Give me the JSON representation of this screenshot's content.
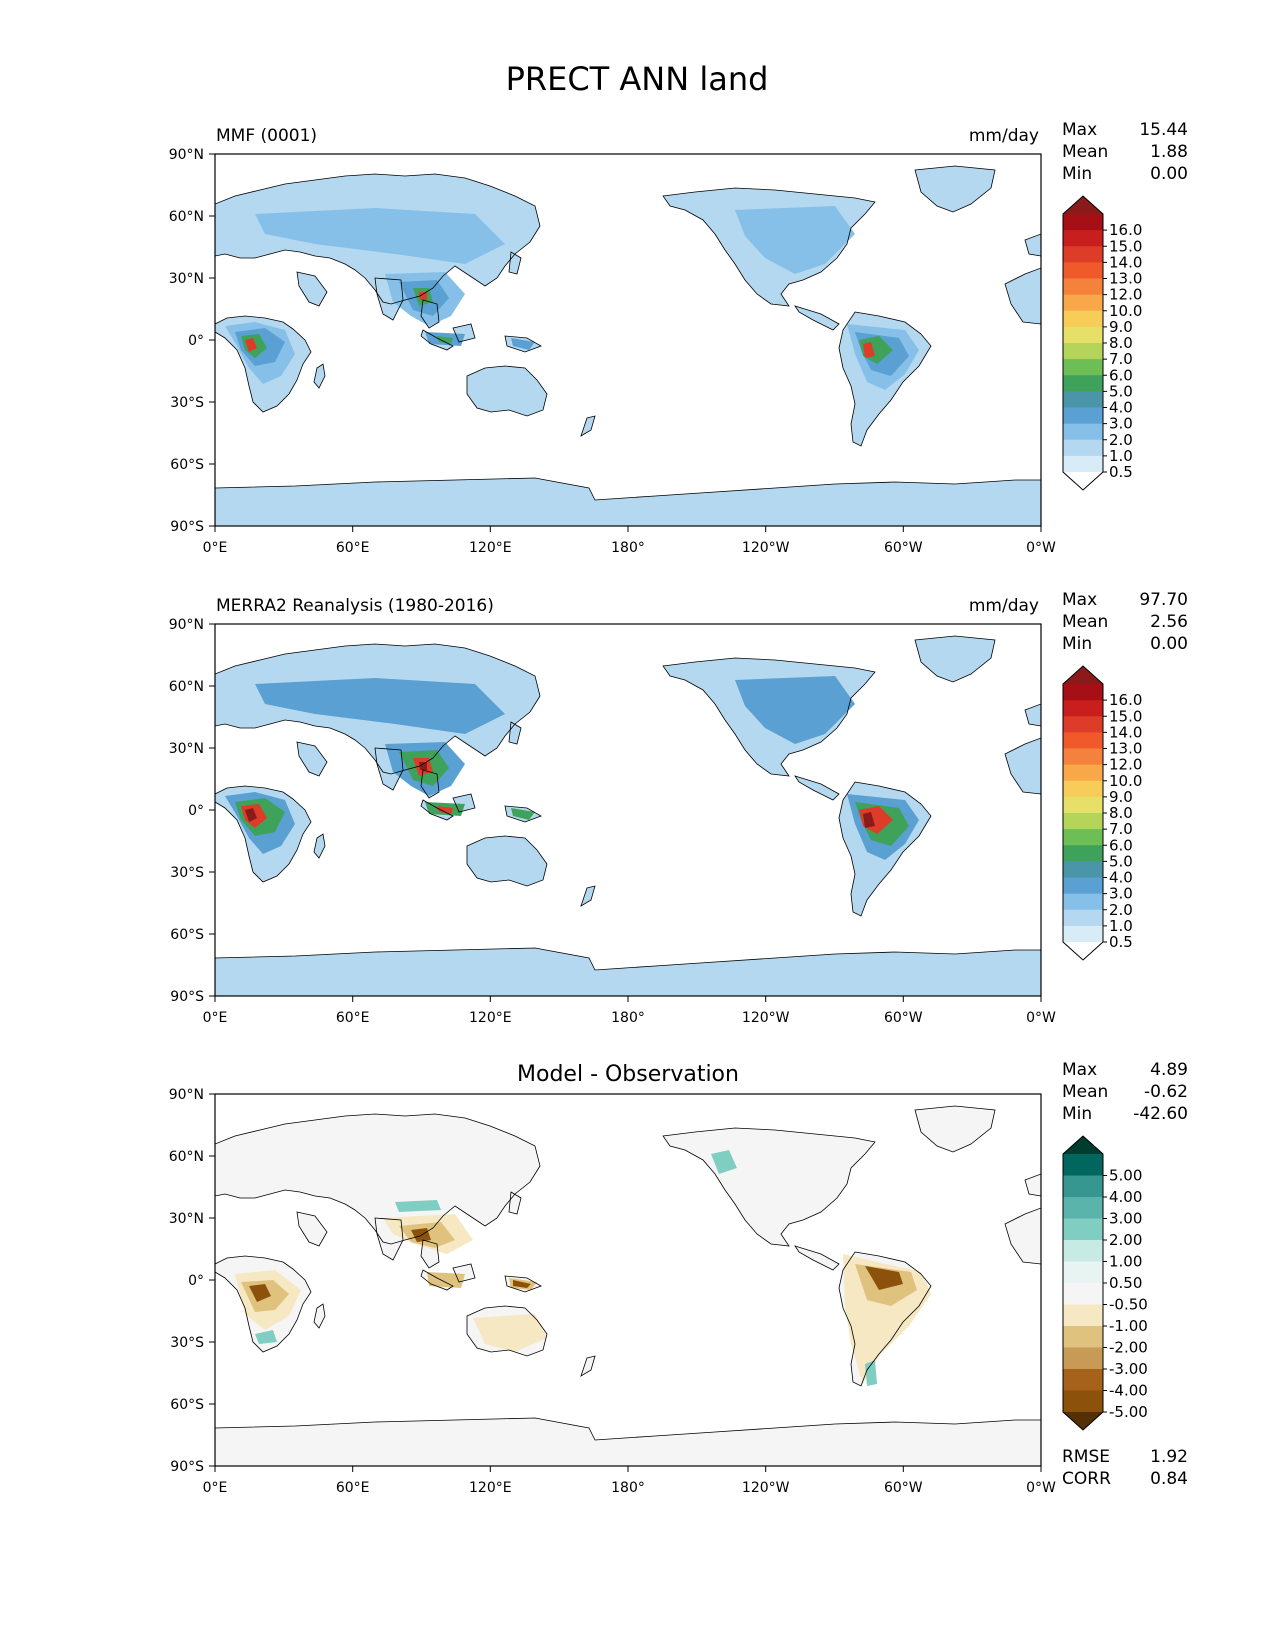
{
  "figure": {
    "title": "PRECT ANN land",
    "lat_ticks": [
      "90°N",
      "60°N",
      "30°N",
      "0°",
      "30°S",
      "60°S",
      "90°S"
    ],
    "lon_ticks": [
      "0°E",
      "60°E",
      "120°E",
      "180°",
      "120°W",
      "60°W",
      "0°W"
    ]
  },
  "panels": [
    {
      "left_label": "MMF (0001)",
      "right_label": "mm/day",
      "center_label": "",
      "stats": [
        {
          "label": "Max",
          "value": "15.44"
        },
        {
          "label": "Mean",
          "value": "1.88"
        },
        {
          "label": "Min",
          "value": "0.00"
        }
      ],
      "colorbar": {
        "levels": [
          "16.0",
          "15.0",
          "14.0",
          "13.0",
          "12.0",
          "10.0",
          "9.0",
          "8.0",
          "7.0",
          "6.0",
          "5.0",
          "4.0",
          "3.0",
          "2.0",
          "1.0",
          "0.5"
        ],
        "colors": [
          "#8b1a1a",
          "#a50f15",
          "#c81e1e",
          "#dc3c28",
          "#f05a2a",
          "#f5823c",
          "#f8a848",
          "#f8cc58",
          "#e6e068",
          "#b4d45a",
          "#6cbe55",
          "#3fa25a",
          "#4a96a8",
          "#5aa0d2",
          "#86c0e8",
          "#b4d8f0",
          "#d8ecf8",
          "#ffffff"
        ]
      },
      "extra_stats": []
    },
    {
      "left_label": "MERRA2 Reanalysis (1980-2016)",
      "right_label": "mm/day",
      "center_label": "",
      "stats": [
        {
          "label": "Max",
          "value": "97.70"
        },
        {
          "label": "Mean",
          "value": "2.56"
        },
        {
          "label": "Min",
          "value": "0.00"
        }
      ],
      "colorbar": {
        "levels": [
          "16.0",
          "15.0",
          "14.0",
          "13.0",
          "12.0",
          "10.0",
          "9.0",
          "8.0",
          "7.0",
          "6.0",
          "5.0",
          "4.0",
          "3.0",
          "2.0",
          "1.0",
          "0.5"
        ],
        "colors": [
          "#8b1a1a",
          "#a50f15",
          "#c81e1e",
          "#dc3c28",
          "#f05a2a",
          "#f5823c",
          "#f8a848",
          "#f8cc58",
          "#e6e068",
          "#b4d45a",
          "#6cbe55",
          "#3fa25a",
          "#4a96a8",
          "#5aa0d2",
          "#86c0e8",
          "#b4d8f0",
          "#d8ecf8",
          "#ffffff"
        ]
      },
      "extra_stats": []
    },
    {
      "left_label": "",
      "right_label": "",
      "center_label": "Model - Observation",
      "stats": [
        {
          "label": "Max",
          "value": "4.89"
        },
        {
          "label": "Mean",
          "value": "-0.62"
        },
        {
          "label": "Min",
          "value": "-42.60"
        }
      ],
      "colorbar": {
        "levels": [
          "5.00",
          "4.00",
          "3.00",
          "2.00",
          "1.00",
          "0.50",
          "-0.50",
          "-1.00",
          "-2.00",
          "-3.00",
          "-4.00",
          "-5.00"
        ],
        "colors": [
          "#003c30",
          "#01665e",
          "#35978f",
          "#5ab4ac",
          "#80cdc1",
          "#c7eae5",
          "#e8f4f1",
          "#f5f5f5",
          "#f6e8c3",
          "#dfc27d",
          "#c79a55",
          "#a6611a",
          "#8c510a",
          "#543005"
        ]
      },
      "extra_stats": [
        {
          "label": "RMSE",
          "value": "1.92"
        },
        {
          "label": "CORR",
          "value": "0.84"
        }
      ]
    }
  ]
}
